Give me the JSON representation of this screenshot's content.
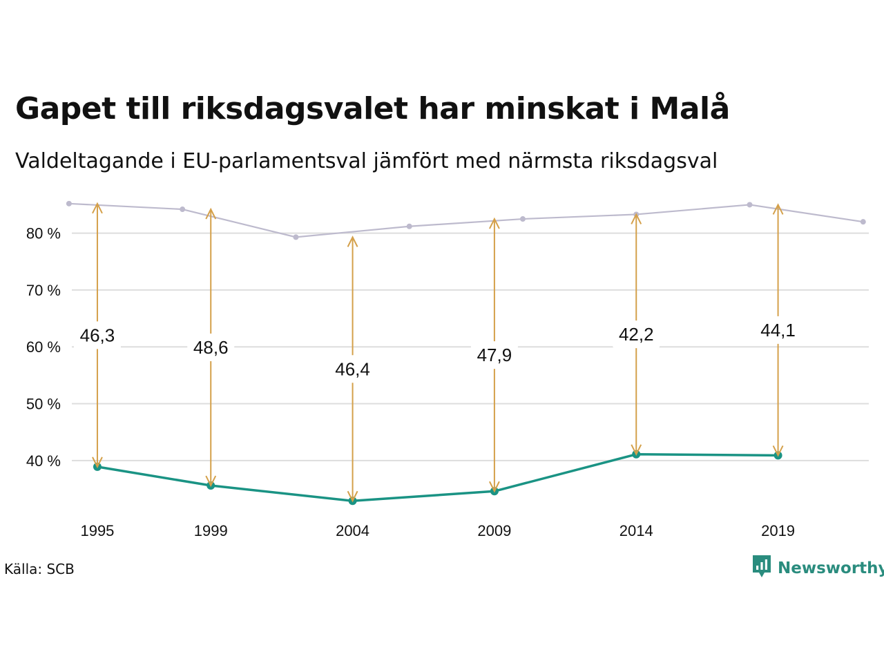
{
  "title": "Gapet till riksdagsvalet har minskat i Malå",
  "subtitle": "Valdeltagande i EU-parlamentsval jämfört med närmsta riksdagsval",
  "source": "Källa: SCB",
  "brand": {
    "name": "Newsworthy",
    "icon": "newsworthy-logo-icon",
    "color": "#2a8c7e"
  },
  "colors": {
    "eu": "#1a9384",
    "riksdag": "#bdbacd",
    "arrow": "#d4a04a",
    "grid": "#dddddd"
  },
  "chart_data": {
    "type": "line",
    "title": "Gapet till riksdagsvalet har minskat i Malå",
    "subtitle": "Valdeltagande i EU-parlamentsval jämfört med närmsta riksdagsval",
    "xlabel": "",
    "ylabel": "",
    "ylim": [
      30.5,
      87
    ],
    "xlim": [
      1994.1,
      2022.2
    ],
    "grid": true,
    "legend": "none",
    "y_ticks": [
      40,
      50,
      60,
      70,
      80
    ],
    "y_tick_labels": [
      "40 %",
      "50 %",
      "60 %",
      "70 %",
      "80 %"
    ],
    "x_ticks": [
      1995,
      1999,
      2004,
      2009,
      2014,
      2019
    ],
    "x_tick_labels": [
      "1995",
      "1999",
      "2004",
      "2009",
      "2014",
      "2019"
    ],
    "series": [
      {
        "key": "riksdag",
        "x": [
          1994,
          1998,
          2002,
          2006,
          2010,
          2014,
          2018,
          2022
        ],
        "y": [
          85.2,
          84.2,
          79.3,
          81.2,
          82.5,
          83.3,
          85.0,
          82.0
        ]
      },
      {
        "key": "eu",
        "x": [
          1995,
          1999,
          2004,
          2009,
          2014,
          2019
        ],
        "y": [
          38.9,
          35.6,
          32.9,
          34.6,
          41.1,
          40.9
        ]
      }
    ],
    "gaps": [
      {
        "x": 1995,
        "from": 85.2,
        "to": 38.9,
        "label": "46,3"
      },
      {
        "x": 1999,
        "from": 84.2,
        "to": 35.6,
        "label": "48,6"
      },
      {
        "x": 2004,
        "from": 79.3,
        "to": 32.9,
        "label": "46,4"
      },
      {
        "x": 2009,
        "from": 82.5,
        "to": 34.6,
        "label": "47,9"
      },
      {
        "x": 2014,
        "from": 83.3,
        "to": 41.1,
        "label": "42,2"
      },
      {
        "x": 2019,
        "from": 85.0,
        "to": 40.9,
        "label": "44,1"
      }
    ]
  }
}
